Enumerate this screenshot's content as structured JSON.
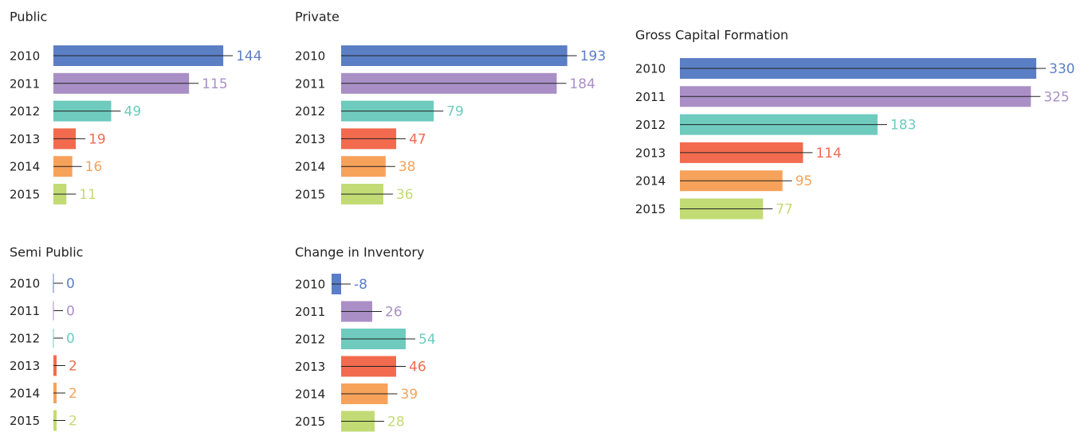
{
  "chart_data": [
    {
      "type": "bar",
      "title": "Public",
      "categories": [
        "2010",
        "2011",
        "2012",
        "2013",
        "2014",
        "2015"
      ],
      "values": [
        144,
        115,
        49,
        19,
        16,
        11
      ],
      "colors": [
        "#5b7fc4",
        "#a98fc6",
        "#6ecbbe",
        "#f26b4f",
        "#f7a25a",
        "#c2db74"
      ]
    },
    {
      "type": "bar",
      "title": "Private",
      "categories": [
        "2010",
        "2011",
        "2012",
        "2013",
        "2014",
        "2015"
      ],
      "values": [
        193,
        184,
        79,
        47,
        38,
        36
      ],
      "colors": [
        "#5b7fc4",
        "#a98fc6",
        "#6ecbbe",
        "#f26b4f",
        "#f7a25a",
        "#c2db74"
      ]
    },
    {
      "type": "bar",
      "title": "Gross Capital Formation",
      "categories": [
        "2010",
        "2011",
        "2012",
        "2013",
        "2014",
        "2015"
      ],
      "values": [
        330,
        325,
        183,
        114,
        95,
        77
      ],
      "colors": [
        "#5b7fc4",
        "#a98fc6",
        "#6ecbbe",
        "#f26b4f",
        "#f7a25a",
        "#c2db74"
      ]
    },
    {
      "type": "bar",
      "title": "Semi Public",
      "categories": [
        "2010",
        "2011",
        "2012",
        "2013",
        "2014",
        "2015"
      ],
      "values": [
        0,
        0,
        0,
        2,
        2,
        2
      ],
      "colors": [
        "#5b7fc4",
        "#a98fc6",
        "#6ecbbe",
        "#f26b4f",
        "#f7a25a",
        "#c2db74"
      ]
    },
    {
      "type": "bar",
      "title": "Change in Inventory",
      "categories": [
        "2010",
        "2011",
        "2012",
        "2013",
        "2014",
        "2015"
      ],
      "values": [
        -8,
        26,
        54,
        46,
        39,
        28
      ],
      "colors": [
        "#5b7fc4",
        "#a98fc6",
        "#6ecbbe",
        "#f26b4f",
        "#f7a25a",
        "#c2db74"
      ]
    }
  ]
}
